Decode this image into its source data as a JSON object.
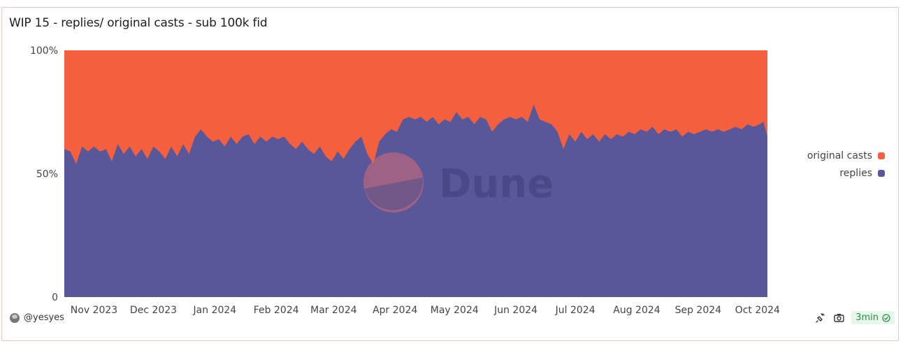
{
  "card": {
    "title": "WIP 15 - replies/ original casts - sub 100k fid"
  },
  "footer": {
    "author": "@yesyes",
    "refresh": "3min"
  },
  "watermark": {
    "text": "Dune"
  },
  "colors": {
    "replies": "#575799",
    "original": "#f4603e",
    "axis_text": "#444444"
  },
  "chart_data": {
    "type": "area",
    "stacked_percent": true,
    "title": "WIP 15 - replies/ original casts - sub 100k fid",
    "xlabel": "",
    "ylabel": "",
    "ylim": [
      0,
      100
    ],
    "yticks": [
      {
        "label": "100%",
        "value": 100
      },
      {
        "label": "50%",
        "value": 50
      },
      {
        "label": "0",
        "value": 0
      }
    ],
    "x_start": "2023-10-17",
    "x_end": "2024-10-06",
    "xticks": [
      {
        "label": "Nov 2023",
        "date": "2023-11-01"
      },
      {
        "label": "Dec 2023",
        "date": "2023-12-01"
      },
      {
        "label": "Jan 2024",
        "date": "2024-01-01"
      },
      {
        "label": "Feb 2024",
        "date": "2024-02-01"
      },
      {
        "label": "Mar 2024",
        "date": "2024-03-01"
      },
      {
        "label": "Apr 2024",
        "date": "2024-04-01"
      },
      {
        "label": "May 2024",
        "date": "2024-05-01"
      },
      {
        "label": "Jun 2024",
        "date": "2024-06-01"
      },
      {
        "label": "Jul 2024",
        "date": "2024-07-01"
      },
      {
        "label": "Aug 2024",
        "date": "2024-08-01"
      },
      {
        "label": "Sep 2024",
        "date": "2024-09-01"
      },
      {
        "label": "Oct 2024",
        "date": "2024-10-01"
      }
    ],
    "legend_position": "right",
    "series": [
      {
        "name": "original casts",
        "color": "#f4603e",
        "note": "remainder to 100%"
      },
      {
        "name": "replies",
        "color": "#575799",
        "points": [
          [
            "2023-10-17",
            60
          ],
          [
            "2023-10-20",
            59
          ],
          [
            "2023-10-23",
            54
          ],
          [
            "2023-10-26",
            61
          ],
          [
            "2023-10-29",
            59
          ],
          [
            "2023-11-01",
            61
          ],
          [
            "2023-11-04",
            59
          ],
          [
            "2023-11-07",
            60
          ],
          [
            "2023-11-10",
            55
          ],
          [
            "2023-11-13",
            62
          ],
          [
            "2023-11-16",
            58
          ],
          [
            "2023-11-19",
            61
          ],
          [
            "2023-11-22",
            57
          ],
          [
            "2023-11-25",
            60
          ],
          [
            "2023-11-28",
            56
          ],
          [
            "2023-12-01",
            61
          ],
          [
            "2023-12-04",
            59
          ],
          [
            "2023-12-07",
            56
          ],
          [
            "2023-12-10",
            61
          ],
          [
            "2023-12-13",
            57
          ],
          [
            "2023-12-16",
            62
          ],
          [
            "2023-12-19",
            58
          ],
          [
            "2023-12-22",
            65
          ],
          [
            "2023-12-25",
            68
          ],
          [
            "2023-12-28",
            65
          ],
          [
            "2023-12-31",
            63
          ],
          [
            "2024-01-03",
            64
          ],
          [
            "2024-01-06",
            61
          ],
          [
            "2024-01-09",
            65
          ],
          [
            "2024-01-12",
            62
          ],
          [
            "2024-01-15",
            65
          ],
          [
            "2024-01-18",
            66
          ],
          [
            "2024-01-21",
            62
          ],
          [
            "2024-01-24",
            65
          ],
          [
            "2024-01-27",
            63
          ],
          [
            "2024-01-30",
            65
          ],
          [
            "2024-02-02",
            64
          ],
          [
            "2024-02-05",
            65
          ],
          [
            "2024-02-08",
            62
          ],
          [
            "2024-02-11",
            60
          ],
          [
            "2024-02-14",
            63
          ],
          [
            "2024-02-17",
            60
          ],
          [
            "2024-02-20",
            58
          ],
          [
            "2024-02-23",
            61
          ],
          [
            "2024-02-26",
            57
          ],
          [
            "2024-02-29",
            55
          ],
          [
            "2024-03-03",
            59
          ],
          [
            "2024-03-06",
            56
          ],
          [
            "2024-03-09",
            60
          ],
          [
            "2024-03-12",
            63
          ],
          [
            "2024-03-15",
            65
          ],
          [
            "2024-03-18",
            58
          ],
          [
            "2024-03-21",
            54
          ],
          [
            "2024-03-24",
            63
          ],
          [
            "2024-03-27",
            66
          ],
          [
            "2024-03-30",
            68
          ],
          [
            "2024-04-02",
            67
          ],
          [
            "2024-04-05",
            72
          ],
          [
            "2024-04-08",
            73
          ],
          [
            "2024-04-11",
            72
          ],
          [
            "2024-04-14",
            73
          ],
          [
            "2024-04-17",
            71
          ],
          [
            "2024-04-20",
            73
          ],
          [
            "2024-04-23",
            70
          ],
          [
            "2024-04-26",
            72
          ],
          [
            "2024-04-29",
            71
          ],
          [
            "2024-05-02",
            75
          ],
          [
            "2024-05-05",
            72
          ],
          [
            "2024-05-08",
            73
          ],
          [
            "2024-05-11",
            70
          ],
          [
            "2024-05-14",
            73
          ],
          [
            "2024-05-17",
            72
          ],
          [
            "2024-05-20",
            67
          ],
          [
            "2024-05-23",
            70
          ],
          [
            "2024-05-26",
            72
          ],
          [
            "2024-05-29",
            73
          ],
          [
            "2024-06-01",
            72
          ],
          [
            "2024-06-04",
            73
          ],
          [
            "2024-06-07",
            71
          ],
          [
            "2024-06-10",
            78
          ],
          [
            "2024-06-13",
            72
          ],
          [
            "2024-06-16",
            71
          ],
          [
            "2024-06-19",
            70
          ],
          [
            "2024-06-22",
            67
          ],
          [
            "2024-06-25",
            60
          ],
          [
            "2024-06-28",
            66
          ],
          [
            "2024-07-01",
            63
          ],
          [
            "2024-07-04",
            67
          ],
          [
            "2024-07-07",
            64
          ],
          [
            "2024-07-10",
            66
          ],
          [
            "2024-07-13",
            63
          ],
          [
            "2024-07-16",
            66
          ],
          [
            "2024-07-19",
            64
          ],
          [
            "2024-07-22",
            66
          ],
          [
            "2024-07-25",
            65
          ],
          [
            "2024-07-28",
            67
          ],
          [
            "2024-07-31",
            66
          ],
          [
            "2024-08-03",
            68
          ],
          [
            "2024-08-06",
            67
          ],
          [
            "2024-08-09",
            69
          ],
          [
            "2024-08-12",
            66
          ],
          [
            "2024-08-15",
            68
          ],
          [
            "2024-08-18",
            67
          ],
          [
            "2024-08-21",
            68
          ],
          [
            "2024-08-24",
            65
          ],
          [
            "2024-08-27",
            67
          ],
          [
            "2024-08-30",
            66
          ],
          [
            "2024-09-02",
            67
          ],
          [
            "2024-09-05",
            68
          ],
          [
            "2024-09-08",
            67
          ],
          [
            "2024-09-11",
            68
          ],
          [
            "2024-09-14",
            67
          ],
          [
            "2024-09-17",
            68
          ],
          [
            "2024-09-20",
            69
          ],
          [
            "2024-09-23",
            68
          ],
          [
            "2024-09-26",
            70
          ],
          [
            "2024-09-29",
            69
          ],
          [
            "2024-10-02",
            70
          ],
          [
            "2024-10-04",
            71
          ],
          [
            "2024-10-06",
            65
          ]
        ]
      }
    ]
  }
}
